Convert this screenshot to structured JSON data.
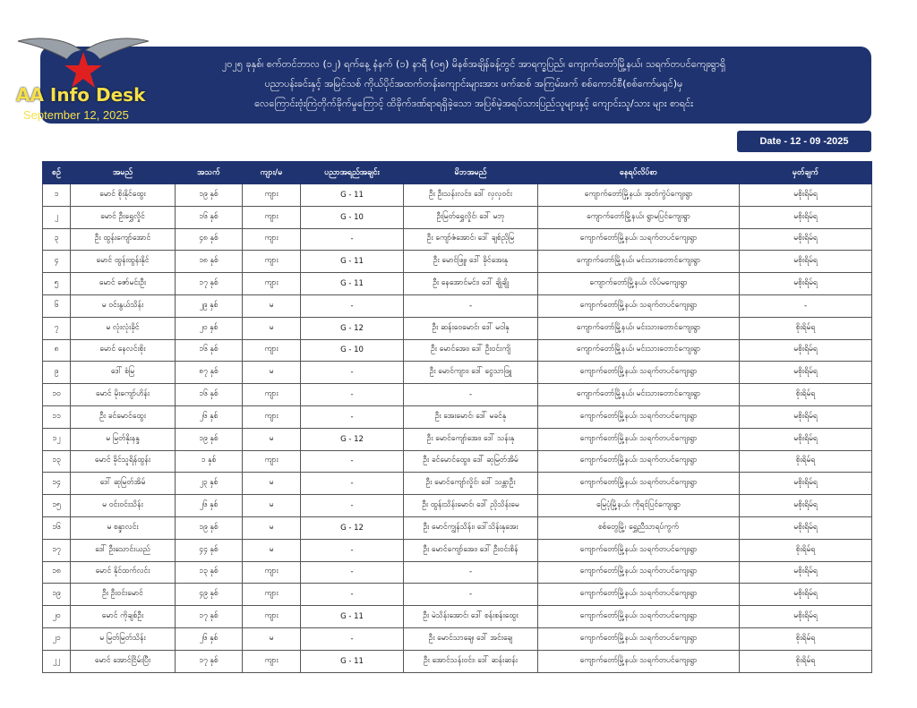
{
  "logo": {
    "name": "AA Info Desk",
    "date": "September 12, 2025"
  },
  "header": {
    "title_lines": [
      "၂၀၂၅ ခုနှစ်၊ စက်တင်ဘာလ (၁၂) ရက်နေ့ နံနက် (၁) နာရီ (၀၅) မိနစ်အချိန်ခန့်တွင် အာရက္ခပြည်၊ ကျောက်တော်မြို့နယ်၊ သရက်တပင်ကျေးရွာရှိ",
      "ပညာပန်းခင်းနှင့် အမြင်သစ် ကိုယ်ပိုင်အထက်တန်းကျောင်းများအား ဖက်ဆစ် အကြမ်းဖက် စစ်ကောင်စီ(စစ်ကော်မရှင်)မှ",
      "လေကြောင်းဗုံးကြဲတိုက်ခိုက်မှုကြောင့် ထိခိုက်ဒဏ်ရာရရှိခဲ့သော အပြစ်မဲ့အရပ်သားပြည်သူများနှင့် ကျောင်းသူ/သား များ စာရင်း"
    ],
    "date_label": "Date - 12 - 09 -2025"
  },
  "table": {
    "columns": [
      "စဉ်",
      "အမည်",
      "အသက်",
      "ကျား/မ",
      "ပညာအရည်အချင်း",
      "မိဘအမည်",
      "နေရပ်လိပ်စာ",
      "မှတ်ချက်"
    ],
    "rows": [
      [
        "၁",
        "မောင် စိုးနိုင်ထွေး",
        "၁၉ နှစ်",
        "ကျား",
        "G - 11",
        "ဦး ဦးသန်းလင်း၊ ဒေါ် လှလှဝင်း",
        "ကျောက်တော်မြို့နယ်၊ အုတ်ကွဲပ်ကျေးရွာ",
        "မစိုးရိမ်ရ"
      ],
      [
        "၂",
        "မောင် ဦးရွှေလှိုင်",
        "၁၆ နှစ်",
        "ကျား",
        "G - 10",
        "ဦးမြတ်ရွှေလှိုင်၊ ဒေါ် မဘု",
        "ကျောက်တော်မြို့နယ်၊ ရွာမပြင်ကျေးရွာ",
        "မစိုးရိမ်ရ"
      ],
      [
        "၃",
        "ဦး ထွန်းကျော်အောင်",
        "၄၈ နှစ်",
        "ကျား",
        "-",
        "ဦး ကျော်ဇံအောင်၊ ဒေါ် ချစ်ညိုမြ",
        "ကျောက်တော်မြို့နယ်၊ သရက်တပင်ကျေးရွာ",
        "မစိုးရိမ်ရ"
      ],
      [
        "၄",
        "မောင် ထွန်းထွန်းနိုင်",
        "၁၈ နှစ်",
        "ကျား",
        "G - 11",
        "ဦး မောင်ဖြူ၊ ဒေါ် ခိုင်အေးနု",
        "ကျောက်တော်မြို့နယ်၊ မင်းသားတောင်ကျေးရွာ",
        "မစိုးရိမ်ရ"
      ],
      [
        "၅",
        "မောင် ဇော်မင်းဦး",
        "၁၇ နှစ်",
        "ကျား",
        "G - 11",
        "ဦး နေအောင်မင်း၊ ဒေါ် ချိုချို",
        "ကျောက်တော်မြို့နယ်၊ လိပ်မကျေးရွာ",
        "မစိုးရိမ်ရ"
      ],
      [
        "၆",
        "မ ဝင်းနွယ်သိန်း",
        "၂၉ နှစ်",
        "မ",
        "-",
        "-",
        "ကျောက်တော်မြို့နယ်၊ သရက်တပင်ကျေးရွာ",
        "-"
      ],
      [
        "၇",
        "မ လုံးလုံးခိုင်",
        "၂၀ နှစ်",
        "မ",
        "G - 12",
        "ဦး ဆန်းဝေမောင်၊ ဒေါ် မဝါနု",
        "ကျောက်တော်မြို့နယ်၊ မင်းသားတောင်ကျေးရွာ",
        "စိုးရိမ်ရ"
      ],
      [
        "၈",
        "မောင် နေလင်းစိုး",
        "၁၆ နှစ်",
        "ကျား",
        "G - 10",
        "ဦး မောင်အေး၊ ဒေါ် ဦးဝင်းကျိ",
        "ကျောက်တော်မြို့နယ်၊ မင်းသားတောင်ကျေးရွာ",
        "မစိုးရိမ်ရ"
      ],
      [
        "၉",
        "ဒေါ် စံမြ",
        "၈၇ နှစ်",
        "မ",
        "-",
        "ဦး မောင်ကျား၊ ဒေါ် ငွေသာဖြူ",
        "ကျောက်တော်မြို့နယ်၊ သရက်တပင်ကျေးရွာ",
        "မစိုးရိမ်ရ"
      ],
      [
        "၁၀",
        "မောင် မိုးကျော်ဟိန်း",
        "၁၆ နှစ်",
        "ကျား",
        "-",
        "-",
        "ကျောက်တော်မြို့နယ်၊ မင်းသားတောင်ကျေးရွာ",
        "စိုးရိမ်ရ"
      ],
      [
        "၁၁",
        "ဦး ခင်မောင်ထွေး",
        "၂၆ နှစ်",
        "ကျား",
        "-",
        "ဦး အေးမောင်၊ ဒေါ် မခင်နု",
        "ကျောက်တော်မြို့နယ်၊ သရက်တပင်ကျေးရွာ",
        "မစိုးရိမ်ရ"
      ],
      [
        "၁၂",
        "မ မြတ်နိုးနန္ဒ",
        "၁၉ နှစ်",
        "မ",
        "G - 12",
        "ဦး မောင်ကျော်အေး၊ ဒေါ် သန်းနု",
        "ကျောက်တော်မြို့နယ်၊ သရက်တပင်ကျေးရွာ",
        "မစိုးရိမ်ရ"
      ],
      [
        "၁၃",
        "မောင် ခိုင်သူရိန်ထွန်း",
        "၁ နှစ်",
        "ကျား",
        "-",
        "ဦး ခင်မောင်ထွေး၊ ဒေါ် ဆုမြတ်အိမ်",
        "ကျောက်တော်မြို့နယ်၊ သရက်တပင်ကျေးရွာ",
        "စိုးရိမ်ရ"
      ],
      [
        "၁၄",
        "ဒေါ် ဆုမြတ်အိမ်",
        "၂၃ နှစ်",
        "မ",
        "-",
        "ဦး မောင်ကျော်လှိုင်၊ ဒေါ် သန္တာဦး",
        "ကျောက်တော်မြို့နယ်၊ သရက်တပင်ကျေးရွာ",
        "မစိုးရိမ်ရ"
      ],
      [
        "၁၅",
        "မ ဝင်းဝင်းသိန်း",
        "၂၆ နှစ်",
        "မ",
        "-",
        "ဦး ထွန်းသိန်းမောင်၊ ဒေါ် ညိုသိန်းမေ",
        "မြေပုံမြို့နယ်၊ ကိုရင်ပြင်ကျေးရွာ",
        "မစိုးရိမ်ရ"
      ],
      [
        "၁၆",
        "မ စန္ဒာလင်း",
        "၁၉ နှစ်",
        "မ",
        "G - 12",
        "ဦး မောင်ကျွန်သိန်း၊ ဒေါ်သိန်းနုအေး",
        "စစ်တွေမြို့၊ ရွှေညီသာရပ်ကွက်",
        "မစိုးရိမ်ရ"
      ],
      [
        "၁၇",
        "ဒေါ် ဦးသောင်းယည်",
        "၄၄ နှစ်",
        "မ",
        "-",
        "ဦး မောင်ကျော်အေး၊ ဒေါ် ဦးဝင်းစိန်",
        "ကျောက်တော်မြို့နယ်၊ သရက်တပင်ကျေးရွာ",
        "စိုးရိမ်ရ"
      ],
      [
        "၁၈",
        "မောင် နိုင်ထက်လင်း",
        "၁၃ နှစ်",
        "ကျား",
        "-",
        "-",
        "ကျောက်တော်မြို့နယ်၊ သရက်တပင်ကျေးရွာ",
        "မစိုးရိမ်ရ"
      ],
      [
        "၁၉",
        "ဦး ဦးဝင်းမောင်",
        "၄၉ နှစ်",
        "ကျား",
        "-",
        "-",
        "ကျောက်တော်မြို့နယ်၊ သရက်တပင်ကျေးရွာ",
        "မစိုးရိမ်ရ"
      ],
      [
        "၂၀",
        "မောင် ကိုချစ်ဦး",
        "၁၇ နှစ်",
        "ကျား",
        "G - 11",
        "ဦး မဲသိန်းအောင်၊ ဒေါ် စန်းစန်းထွေး",
        "ကျောက်တော်မြို့နယ်၊ သရက်တပင်ကျေးရွာ",
        "မစိုးရိမ်ရ"
      ],
      [
        "၂၁",
        "မ မြတ်မြတ်သိန်း",
        "၂၆ နှစ်",
        "မ",
        "-",
        "ဦး မောင်သာချေ၊ ဒေါ် အင်းချေ",
        "ကျောက်တော်မြို့နယ်၊ သရက်တပင်ကျေးရွာ",
        "စိုးရိမ်ရ"
      ],
      [
        "၂၂",
        "မောင် အောင်ငြိမ်းပြီး",
        "၁၇ နှစ်",
        "ကျား",
        "G - 11",
        "ဦး အောင်သန်းဝင်း၊ ဒေါ် ဆန်းဆန်း",
        "ကျောက်တော်မြို့နယ်၊ သရက်တပင်ကျေးရွာ",
        "စိုးရိမ်ရ"
      ]
    ]
  }
}
